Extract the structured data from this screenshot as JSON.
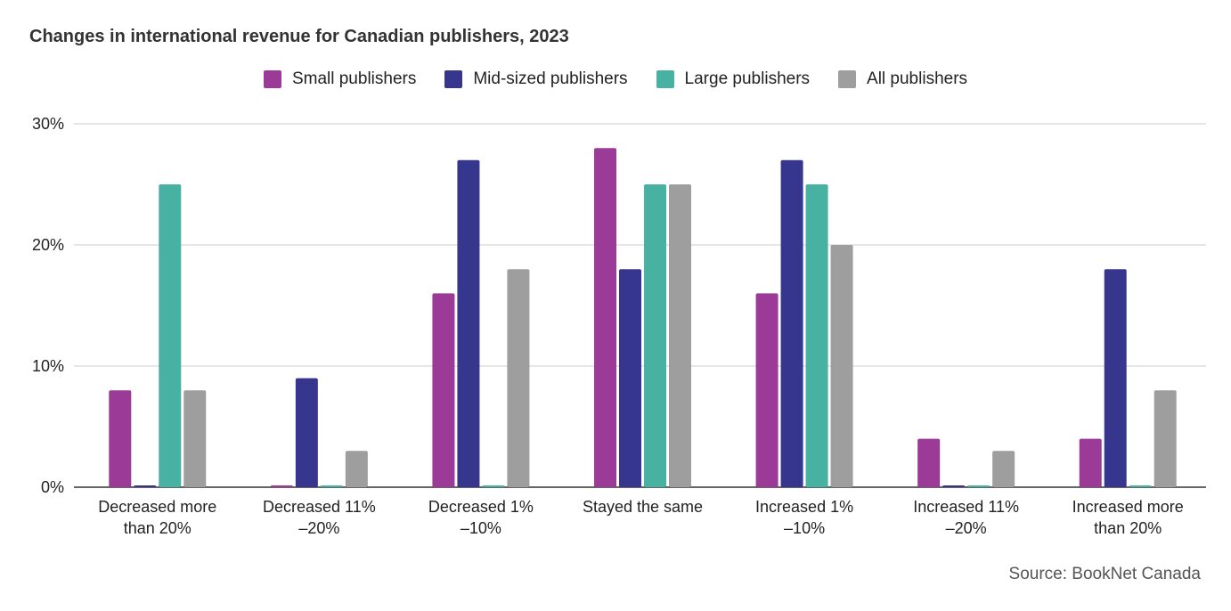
{
  "chart_data": {
    "type": "bar",
    "title": "Changes in international revenue for Canadian publishers, 2023",
    "categories": [
      [
        "Decreased more",
        "than 20%"
      ],
      [
        "Decreased 11%",
        "–20%"
      ],
      [
        "Decreased 1%",
        "–10%"
      ],
      [
        "Stayed the same"
      ],
      [
        "Increased 1%",
        "–10%"
      ],
      [
        "Increased 11%",
        "–20%"
      ],
      [
        "Increased more",
        "than 20%"
      ]
    ],
    "series": [
      {
        "name": "Small publishers",
        "color": "#9b3a97",
        "values": [
          8,
          0,
          16,
          28,
          16,
          4,
          4
        ]
      },
      {
        "name": "Mid-sized publishers",
        "color": "#37368f",
        "values": [
          0,
          9,
          27,
          18,
          27,
          0,
          18
        ]
      },
      {
        "name": "Large publishers",
        "color": "#47b1a2",
        "values": [
          25,
          0,
          0,
          25,
          25,
          0,
          0
        ]
      },
      {
        "name": "All publishers",
        "color": "#9e9e9e",
        "values": [
          8,
          3,
          18,
          25,
          20,
          3,
          8
        ]
      }
    ],
    "ylim": [
      0,
      30
    ],
    "yticks": [
      0,
      10,
      20,
      30
    ],
    "ytick_labels": [
      "0%",
      "10%",
      "20%",
      "30%"
    ],
    "grid": true,
    "legend_position": "top-center",
    "source": "Source: BookNet Canada"
  }
}
